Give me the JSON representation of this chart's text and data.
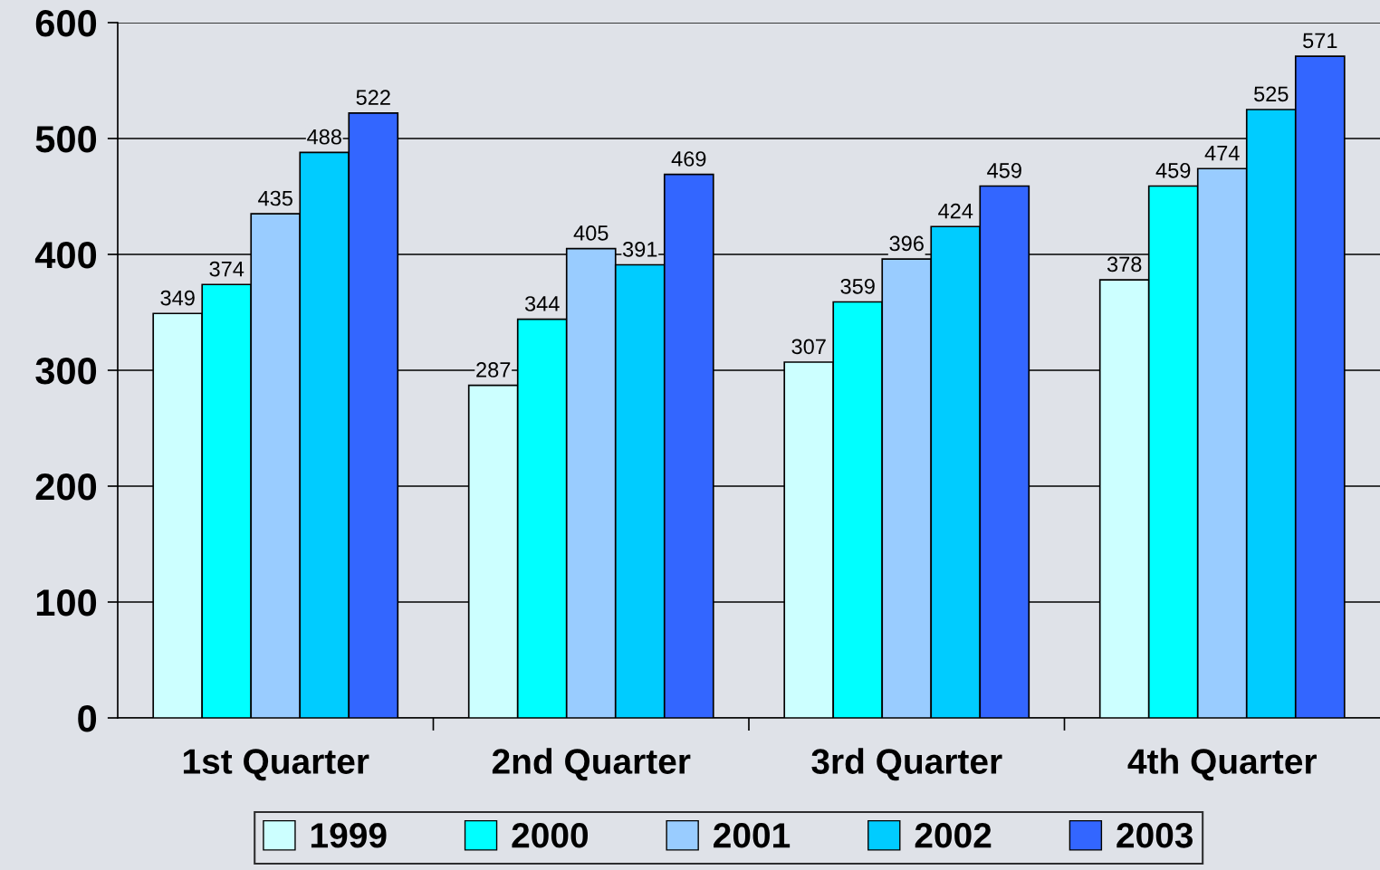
{
  "chart_data": {
    "type": "bar",
    "categories": [
      "1st Quarter",
      "2nd Quarter",
      "3rd Quarter",
      "4th Quarter"
    ],
    "series": [
      {
        "name": "1999",
        "color": "#ccffff",
        "values": [
          349,
          287,
          307,
          378
        ]
      },
      {
        "name": "2000",
        "color": "#00ffff",
        "values": [
          374,
          344,
          359,
          459
        ]
      },
      {
        "name": "2001",
        "color": "#99ccff",
        "values": [
          435,
          405,
          396,
          474
        ]
      },
      {
        "name": "2002",
        "color": "#00ccff",
        "values": [
          488,
          391,
          424,
          525
        ]
      },
      {
        "name": "2003",
        "color": "#3366ff",
        "values": [
          522,
          469,
          459,
          571
        ]
      }
    ],
    "ylim": [
      0,
      600
    ],
    "yticks": [
      0,
      100,
      200,
      300,
      400,
      500,
      600
    ],
    "grid": "y",
    "legend": "bottom",
    "data_labels": true
  }
}
